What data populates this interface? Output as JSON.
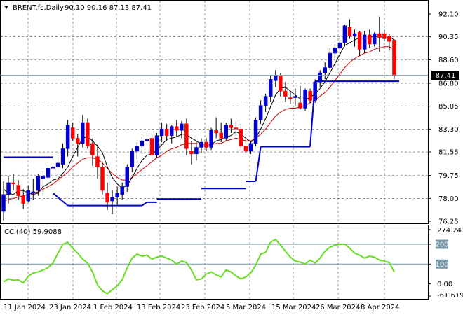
{
  "header": {
    "symbol": "BRENT.fs,Daily",
    "ohlc": "90.10 90.16 87.13 87.41"
  },
  "indicator": {
    "label": "CCI(40) 59.9088"
  },
  "price_axis": {
    "ticks": [
      "92.10",
      "90.35",
      "88.60",
      "86.80",
      "85.05",
      "83.30",
      "81.55",
      "79.75",
      "78.00",
      "76.25"
    ],
    "current_price_label": "87.41"
  },
  "cci_axis": {
    "ticks": [
      "274.2435",
      "200",
      "100",
      "0.00",
      "-61.619"
    ]
  },
  "time_axis": {
    "labels": [
      "11 Jan 2024",
      "23 Jan 2024",
      "1 Feb 2024",
      "13 Feb 2024",
      "23 Feb 2024",
      "5 Mar 2024",
      "15 Mar 2024",
      "26 Mar 2024",
      "8 Apr 2024"
    ]
  },
  "colors": {
    "bull": "#0000cc",
    "bear": "#ff0000",
    "fast_ma": "#000000",
    "slow_ma": "#cc0000",
    "stop_line": "#0000cc",
    "cci_line": "#66dd22",
    "grid": "#000000",
    "level_line": "#7799aa"
  },
  "chart_data": [
    {
      "type": "candlestick",
      "title": "BRENT.fs,Daily",
      "ylim": [
        76.25,
        92.1
      ],
      "candles": [
        {
          "o": 77.0,
          "h": 79.3,
          "l": 76.3,
          "c": 78.3
        },
        {
          "o": 78.3,
          "h": 79.7,
          "l": 77.6,
          "c": 79.2
        },
        {
          "o": 79.2,
          "h": 79.9,
          "l": 78.6,
          "c": 79.1
        },
        {
          "o": 79.0,
          "h": 79.4,
          "l": 77.9,
          "c": 78.2
        },
        {
          "o": 78.2,
          "h": 78.7,
          "l": 77.2,
          "c": 77.6
        },
        {
          "o": 77.8,
          "h": 79.0,
          "l": 77.7,
          "c": 78.6
        },
        {
          "o": 78.4,
          "h": 79.5,
          "l": 77.9,
          "c": 78.5
        },
        {
          "o": 78.6,
          "h": 79.9,
          "l": 78.2,
          "c": 79.7
        },
        {
          "o": 79.5,
          "h": 80.1,
          "l": 78.3,
          "c": 79.7
        },
        {
          "o": 79.6,
          "h": 80.6,
          "l": 78.9,
          "c": 80.3
        },
        {
          "o": 80.3,
          "h": 81.2,
          "l": 79.8,
          "c": 80.4
        },
        {
          "o": 80.4,
          "h": 81.3,
          "l": 79.9,
          "c": 80.7
        },
        {
          "o": 80.6,
          "h": 82.2,
          "l": 80.3,
          "c": 81.8
        },
        {
          "o": 81.8,
          "h": 84.0,
          "l": 81.2,
          "c": 83.6
        },
        {
          "o": 83.4,
          "h": 83.8,
          "l": 82.4,
          "c": 82.6
        },
        {
          "o": 82.6,
          "h": 82.9,
          "l": 81.2,
          "c": 82.2
        },
        {
          "o": 82.2,
          "h": 84.4,
          "l": 81.9,
          "c": 83.8
        },
        {
          "o": 83.8,
          "h": 84.1,
          "l": 81.8,
          "c": 82.0
        },
        {
          "o": 82.2,
          "h": 82.6,
          "l": 80.5,
          "c": 81.3
        },
        {
          "o": 81.2,
          "h": 82.1,
          "l": 79.5,
          "c": 80.4
        },
        {
          "o": 80.4,
          "h": 80.8,
          "l": 78.3,
          "c": 78.6
        },
        {
          "o": 78.4,
          "h": 79.2,
          "l": 77.1,
          "c": 77.7
        },
        {
          "o": 77.8,
          "h": 78.6,
          "l": 76.8,
          "c": 78.1
        },
        {
          "o": 78.1,
          "h": 78.9,
          "l": 77.5,
          "c": 78.4
        },
        {
          "o": 78.3,
          "h": 79.2,
          "l": 77.9,
          "c": 78.9
        },
        {
          "o": 78.9,
          "h": 80.6,
          "l": 78.5,
          "c": 80.4
        },
        {
          "o": 80.4,
          "h": 81.8,
          "l": 80.0,
          "c": 81.6
        },
        {
          "o": 81.6,
          "h": 82.3,
          "l": 81.0,
          "c": 82.0
        },
        {
          "o": 82.0,
          "h": 82.7,
          "l": 81.4,
          "c": 82.4
        },
        {
          "o": 82.4,
          "h": 83.0,
          "l": 82.0,
          "c": 82.5
        },
        {
          "o": 82.6,
          "h": 82.9,
          "l": 80.8,
          "c": 81.3
        },
        {
          "o": 81.3,
          "h": 83.0,
          "l": 81.1,
          "c": 82.8
        },
        {
          "o": 82.8,
          "h": 83.8,
          "l": 82.3,
          "c": 83.3
        },
        {
          "o": 83.3,
          "h": 83.7,
          "l": 82.4,
          "c": 82.8
        },
        {
          "o": 82.8,
          "h": 83.6,
          "l": 82.2,
          "c": 83.5
        },
        {
          "o": 83.5,
          "h": 84.0,
          "l": 82.7,
          "c": 83.2
        },
        {
          "o": 83.2,
          "h": 83.9,
          "l": 82.6,
          "c": 83.7
        },
        {
          "o": 83.7,
          "h": 84.1,
          "l": 81.3,
          "c": 81.8
        },
        {
          "o": 81.6,
          "h": 82.4,
          "l": 80.6,
          "c": 81.4
        },
        {
          "o": 81.4,
          "h": 82.4,
          "l": 80.9,
          "c": 81.9
        },
        {
          "o": 81.9,
          "h": 82.6,
          "l": 81.5,
          "c": 82.3
        },
        {
          "o": 82.3,
          "h": 82.6,
          "l": 81.6,
          "c": 81.9
        },
        {
          "o": 81.9,
          "h": 83.4,
          "l": 81.7,
          "c": 83.2
        },
        {
          "o": 83.2,
          "h": 84.2,
          "l": 82.6,
          "c": 83.0
        },
        {
          "o": 83.0,
          "h": 83.8,
          "l": 82.3,
          "c": 82.6
        },
        {
          "o": 82.6,
          "h": 83.8,
          "l": 82.4,
          "c": 83.6
        },
        {
          "o": 83.6,
          "h": 84.1,
          "l": 83.0,
          "c": 83.4
        },
        {
          "o": 83.4,
          "h": 83.9,
          "l": 82.8,
          "c": 83.3
        },
        {
          "o": 83.3,
          "h": 83.7,
          "l": 81.8,
          "c": 82.0
        },
        {
          "o": 82.0,
          "h": 82.5,
          "l": 81.3,
          "c": 81.6
        },
        {
          "o": 81.6,
          "h": 82.4,
          "l": 81.4,
          "c": 82.2
        },
        {
          "o": 82.2,
          "h": 84.2,
          "l": 82.0,
          "c": 84.0
        },
        {
          "o": 84.0,
          "h": 85.5,
          "l": 83.7,
          "c": 85.1
        },
        {
          "o": 85.1,
          "h": 86.0,
          "l": 84.6,
          "c": 85.8
        },
        {
          "o": 85.8,
          "h": 87.4,
          "l": 85.4,
          "c": 87.1
        },
        {
          "o": 87.0,
          "h": 87.8,
          "l": 86.5,
          "c": 87.4
        },
        {
          "o": 87.4,
          "h": 87.6,
          "l": 85.8,
          "c": 86.2
        },
        {
          "o": 86.2,
          "h": 86.9,
          "l": 85.4,
          "c": 85.8
        },
        {
          "o": 85.7,
          "h": 86.2,
          "l": 85.2,
          "c": 85.6
        },
        {
          "o": 85.7,
          "h": 86.4,
          "l": 85.1,
          "c": 85.8
        },
        {
          "o": 85.3,
          "h": 86.6,
          "l": 84.8,
          "c": 84.9
        },
        {
          "o": 84.9,
          "h": 86.4,
          "l": 84.7,
          "c": 86.3
        },
        {
          "o": 86.2,
          "h": 86.4,
          "l": 85.3,
          "c": 85.5
        },
        {
          "o": 85.5,
          "h": 87.1,
          "l": 85.3,
          "c": 86.9
        },
        {
          "o": 86.9,
          "h": 87.8,
          "l": 86.5,
          "c": 87.6
        },
        {
          "o": 87.6,
          "h": 88.4,
          "l": 87.1,
          "c": 88.0
        },
        {
          "o": 88.0,
          "h": 89.5,
          "l": 87.8,
          "c": 89.1
        },
        {
          "o": 89.1,
          "h": 89.8,
          "l": 88.6,
          "c": 89.5
        },
        {
          "o": 89.5,
          "h": 90.3,
          "l": 89.0,
          "c": 89.9
        },
        {
          "o": 89.9,
          "h": 91.3,
          "l": 89.6,
          "c": 91.2
        },
        {
          "o": 91.1,
          "h": 91.7,
          "l": 90.2,
          "c": 90.4
        },
        {
          "o": 90.4,
          "h": 90.9,
          "l": 89.6,
          "c": 90.6
        },
        {
          "o": 90.7,
          "h": 90.8,
          "l": 88.9,
          "c": 89.4
        },
        {
          "o": 89.4,
          "h": 90.8,
          "l": 89.1,
          "c": 90.5
        },
        {
          "o": 90.5,
          "h": 90.9,
          "l": 89.5,
          "c": 89.8
        },
        {
          "o": 89.8,
          "h": 90.7,
          "l": 89.6,
          "c": 90.6
        },
        {
          "o": 90.6,
          "h": 91.9,
          "l": 89.2,
          "c": 90.3
        },
        {
          "o": 90.6,
          "h": 90.9,
          "l": 90.0,
          "c": 90.2
        },
        {
          "o": 90.4,
          "h": 90.6,
          "l": 89.3,
          "c": 90.0
        },
        {
          "o": 90.1,
          "h": 90.16,
          "l": 87.13,
          "c": 87.41
        }
      ],
      "fast_ma": [
        78.7,
        78.4,
        78.3,
        78.6,
        78.6,
        78.4,
        78.3,
        78.4,
        78.9,
        79.1,
        79.4,
        79.5,
        79.9,
        80.4,
        81.2,
        81.9,
        82.6,
        82.7,
        82.4,
        82.0,
        81.5,
        80.4,
        79.6,
        79.1,
        78.8,
        79.0,
        79.6,
        80.3,
        80.9,
        81.3,
        81.4,
        81.7,
        82.1,
        82.5,
        82.6,
        82.7,
        82.9,
        82.9,
        82.6,
        82.4,
        82.1,
        81.9,
        82.1,
        82.4,
        82.5,
        82.7,
        82.8,
        83.1,
        82.9,
        82.6,
        82.3,
        82.6,
        83.3,
        84.1,
        85.0,
        85.9,
        86.4,
        86.5,
        86.2,
        85.9,
        85.6,
        85.6,
        85.7,
        86.0,
        86.4,
        86.9,
        87.6,
        88.3,
        89.0,
        89.7,
        89.9,
        90.1,
        90.3,
        90.2,
        90.3,
        90.4,
        90.4,
        90.4,
        90.4,
        90.1
      ],
      "slow_ma": [
        77.8,
        77.9,
        78.0,
        78.1,
        78.2,
        78.3,
        78.4,
        78.5,
        78.7,
        78.9,
        79.1,
        79.4,
        79.7,
        80.0,
        80.4,
        80.7,
        81.0,
        81.1,
        81.1,
        81.0,
        80.7,
        80.3,
        79.9,
        79.6,
        79.4,
        79.4,
        79.6,
        79.9,
        80.2,
        80.5,
        80.8,
        81.1,
        81.3,
        81.6,
        81.8,
        81.9,
        82.1,
        82.2,
        82.2,
        82.2,
        82.1,
        82.1,
        82.1,
        82.2,
        82.2,
        82.4,
        82.5,
        82.6,
        82.5,
        82.4,
        82.4,
        82.6,
        82.9,
        83.3,
        83.8,
        84.3,
        84.6,
        84.8,
        84.9,
        84.9,
        85.0,
        85.1,
        85.3,
        85.5,
        85.8,
        86.1,
        86.5,
        87.0,
        87.5,
        88.0,
        88.4,
        88.7,
        88.9,
        89.1,
        89.2,
        89.4,
        89.5,
        89.6,
        89.6,
        89.4
      ],
      "stop_line": [
        null,
        null,
        null,
        null,
        null,
        null,
        null,
        null,
        null,
        null,
        null,
        null,
        null,
        null,
        null,
        null,
        null,
        null,
        null,
        null,
        null,
        null,
        null,
        null,
        null,
        null,
        null,
        null,
        null,
        null,
        null,
        null,
        null,
        null,
        null,
        null,
        null,
        null,
        null,
        null,
        null,
        null,
        null,
        null,
        null,
        null,
        null,
        null,
        null,
        null,
        null,
        null,
        null,
        null,
        null,
        null,
        null,
        null,
        null,
        null,
        null,
        null,
        null,
        null,
        null,
        null,
        null,
        null,
        null,
        null,
        null,
        null,
        null,
        null,
        null,
        null,
        null,
        null,
        null,
        null
      ],
      "stop_line_segments": [
        {
          "from": 0,
          "to": 10,
          "value": 81.15
        },
        {
          "from": 13,
          "to": 28,
          "value": 77.45
        },
        {
          "from": 29,
          "to": 31,
          "value": 77.7
        },
        {
          "from": 31,
          "to": 40,
          "value": 77.95
        },
        {
          "from": 40,
          "to": 49,
          "value": 78.75
        },
        {
          "from": 49,
          "to": 51,
          "value": 79.3
        },
        {
          "from": 52,
          "to": 60,
          "value": 81.95
        },
        {
          "from": 60,
          "to": 62,
          "value": 81.95
        },
        {
          "from": 63,
          "to": 67,
          "value": 86.95
        },
        {
          "from": 67,
          "to": 80,
          "value": 86.95
        }
      ],
      "stop_line_ramps": [
        {
          "from": 10,
          "to": 13,
          "y0": 78.4,
          "y1": 77.45
        },
        {
          "from": 28,
          "to": 29,
          "y0": 77.45,
          "y1": 77.7
        },
        {
          "from": 51,
          "to": 52,
          "y0": 79.3,
          "y1": 81.95
        },
        {
          "from": 62,
          "to": 63,
          "y0": 81.95,
          "y1": 86.95
        }
      ]
    },
    {
      "type": "line",
      "title": "CCI(40) 59.9088",
      "ylim": [
        -61.619,
        274.2435
      ],
      "levels": [
        200,
        100
      ],
      "series": [
        {
          "name": "CCI(40)",
          "values": [
            10,
            25,
            18,
            20,
            5,
            38,
            55,
            60,
            70,
            82,
            105,
            155,
            200,
            210,
            180,
            155,
            125,
            105,
            60,
            -5,
            -35,
            -50,
            -30,
            -10,
            20,
            80,
            130,
            150,
            140,
            145,
            125,
            135,
            140,
            130,
            120,
            100,
            115,
            108,
            70,
            20,
            25,
            50,
            60,
            45,
            35,
            70,
            60,
            40,
            25,
            35,
            55,
            95,
            150,
            160,
            210,
            225,
            195,
            165,
            135,
            115,
            110,
            100,
            120,
            105,
            130,
            165,
            185,
            195,
            200,
            200,
            180,
            155,
            145,
            130,
            140,
            135,
            120,
            115,
            108,
            60
          ]
        }
      ]
    }
  ]
}
